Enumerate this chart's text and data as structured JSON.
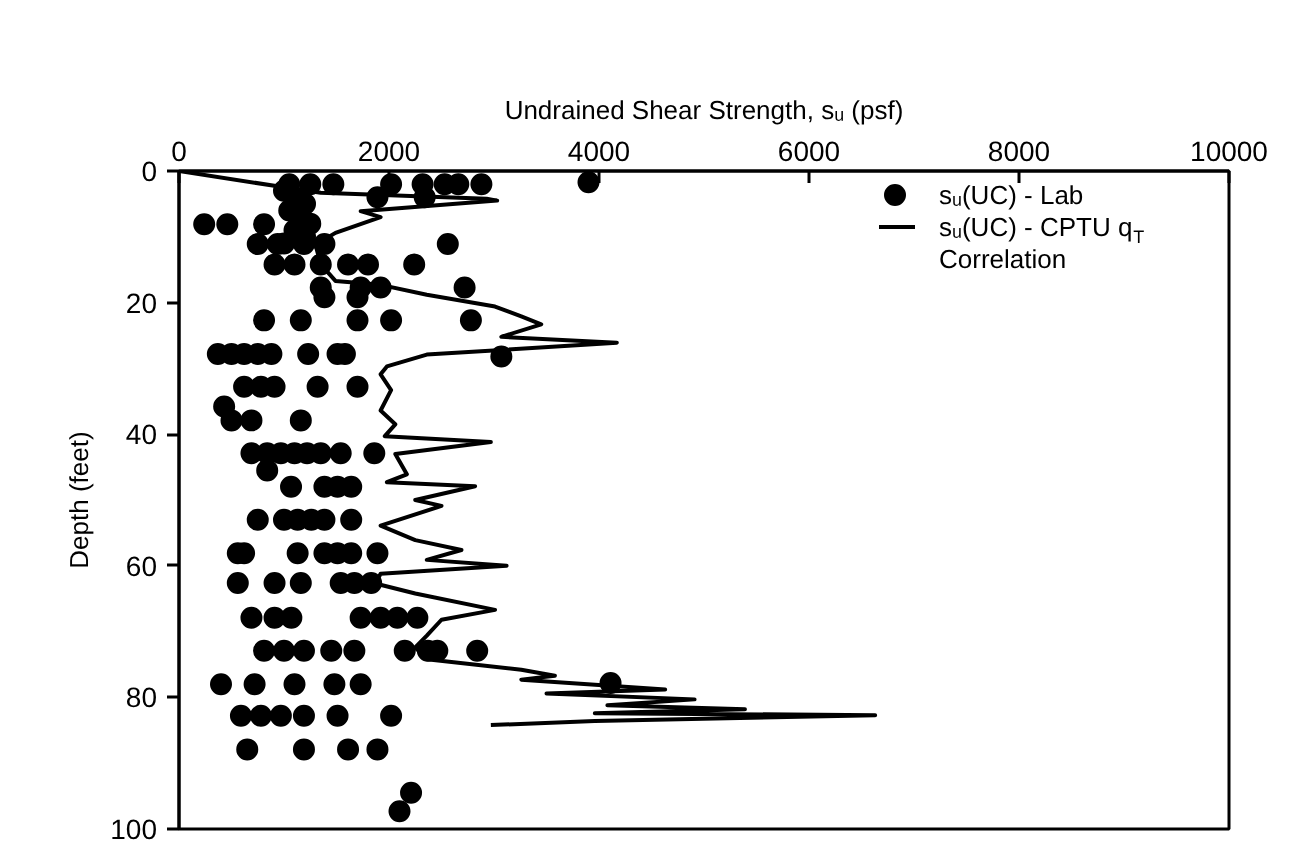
{
  "chart_data": {
    "type": "scatter",
    "xlabel": "Undrained Shear Strength, sᵤ (psf)",
    "ylabel": "Depth (feet)",
    "xlim": [
      0,
      10000
    ],
    "xticks": [
      0,
      2000,
      4000,
      6000,
      8000,
      10000
    ],
    "ylim": [
      100,
      0
    ],
    "yticks": [
      0,
      20,
      40,
      60,
      80,
      100
    ],
    "grid": false,
    "legend": "top right",
    "series": [
      {
        "name": "sᵤ(UC) - Lab",
        "marker": "circle",
        "color": "#000000",
        "x": [
          3900,
          1050,
          1250,
          1470,
          2020,
          2320,
          2530,
          2660,
          2880,
          1890,
          2340,
          1000,
          1100,
          1200,
          1050,
          1150,
          1250,
          1100,
          1200,
          1000,
          240,
          460,
          810,
          750,
          940,
          1190,
          1385,
          2560,
          910,
          1100,
          1350,
          1610,
          1800,
          2240,
          1350,
          1730,
          1920,
          2720,
          1385,
          1700,
          810,
          1160,
          1700,
          2020,
          2780,
          370,
          500,
          620,
          750,
          880,
          1230,
          1510,
          1580,
          3070,
          620,
          780,
          910,
          1320,
          1700,
          430,
          500,
          690,
          1160,
          690,
          840,
          970,
          1100,
          1220,
          1350,
          1540,
          1860,
          840,
          1067,
          1385,
          1510,
          1640,
          750,
          1000,
          1130,
          1260,
          1385,
          1640,
          560,
          620,
          1130,
          1385,
          1510,
          1640,
          1890,
          560,
          910,
          1160,
          1540,
          1670,
          1830,
          690,
          910,
          1070,
          1730,
          1920,
          2080,
          2270,
          810,
          1000,
          1190,
          1450,
          1670,
          2150,
          2370,
          2460,
          2840,
          4110,
          400,
          720,
          1100,
          1480,
          1730,
          590,
          780,
          970,
          1190,
          1510,
          2020,
          650,
          1190,
          1610,
          1890,
          2210,
          2100
        ],
        "values": [
          1.7,
          2,
          2,
          2,
          2,
          2,
          2,
          2,
          2,
          4,
          4,
          3,
          4,
          5,
          6,
          7,
          8,
          9,
          10,
          11,
          8.1,
          8.1,
          8.1,
          11.1,
          11.1,
          11.1,
          11.1,
          11.1,
          14.2,
          14.2,
          14.2,
          14.2,
          14.2,
          14.2,
          17.7,
          17.7,
          17.7,
          17.7,
          19.2,
          19.2,
          22.7,
          22.7,
          22.7,
          22.7,
          22.7,
          27.8,
          27.8,
          27.8,
          27.8,
          27.8,
          27.8,
          27.8,
          27.8,
          28.2,
          32.8,
          32.8,
          32.8,
          32.8,
          32.8,
          35.8,
          37.9,
          37.9,
          37.9,
          42.9,
          42.9,
          42.9,
          42.9,
          42.9,
          42.9,
          42.9,
          42.9,
          45.5,
          48,
          48,
          48,
          48,
          53,
          53,
          53,
          53,
          53,
          53,
          58.1,
          58.1,
          58.1,
          58.1,
          58.1,
          58.1,
          58.1,
          62.6,
          62.6,
          62.6,
          62.6,
          62.6,
          62.6,
          67.9,
          67.9,
          67.9,
          67.9,
          67.9,
          67.9,
          67.9,
          72.9,
          72.9,
          72.9,
          72.9,
          72.9,
          72.9,
          72.9,
          72.9,
          72.9,
          77.8,
          78,
          78,
          78,
          78,
          78,
          82.8,
          82.8,
          82.8,
          82.8,
          82.8,
          82.8,
          87.9,
          87.9,
          87.9,
          87.9,
          94.5,
          97.3
        ]
      },
      {
        "name": "sᵤ(UC) - CPTU q$_{T}$ Correlation",
        "type": "line",
        "line_style": "solid",
        "color": "#000000",
        "x": [
          0,
          970,
          1350,
          2930,
          3030,
          1730,
          1920,
          1490,
          1300,
          1350,
          1490,
          1920,
          2360,
          3010,
          3260,
          3450,
          3070,
          4170,
          2360,
          1980,
          1920,
          2020,
          1920,
          2060,
          1960,
          2970,
          2060,
          2170,
          1980,
          2820,
          2250,
          2500,
          1920,
          2250,
          2690,
          2360,
          3120,
          1920,
          1870,
          2250,
          3010,
          2500,
          2360,
          2250,
          2360,
          3260,
          3580,
          3260,
          4630,
          3500,
          4910,
          4080,
          5390,
          3960,
          6630,
          3960,
          2970
        ],
        "values": [
          0,
          2.4,
          3.3,
          4.2,
          4.5,
          6.1,
          7,
          9.4,
          11.2,
          14.2,
          16.7,
          17.3,
          18.8,
          20.6,
          22.1,
          23.3,
          25.2,
          26.1,
          27.9,
          29.7,
          30.9,
          33.3,
          36.4,
          38.5,
          40.3,
          41.2,
          43,
          46.1,
          47.3,
          47.9,
          50,
          50.9,
          53.9,
          56.1,
          57.6,
          59.1,
          60,
          61.2,
          62.7,
          64.2,
          66.7,
          68.2,
          70.6,
          72.4,
          74.2,
          75.8,
          76.7,
          77.3,
          78.8,
          79.4,
          80.3,
          81.2,
          81.8,
          82.4,
          82.7,
          83.6,
          84.2
        ]
      }
    ]
  }
}
